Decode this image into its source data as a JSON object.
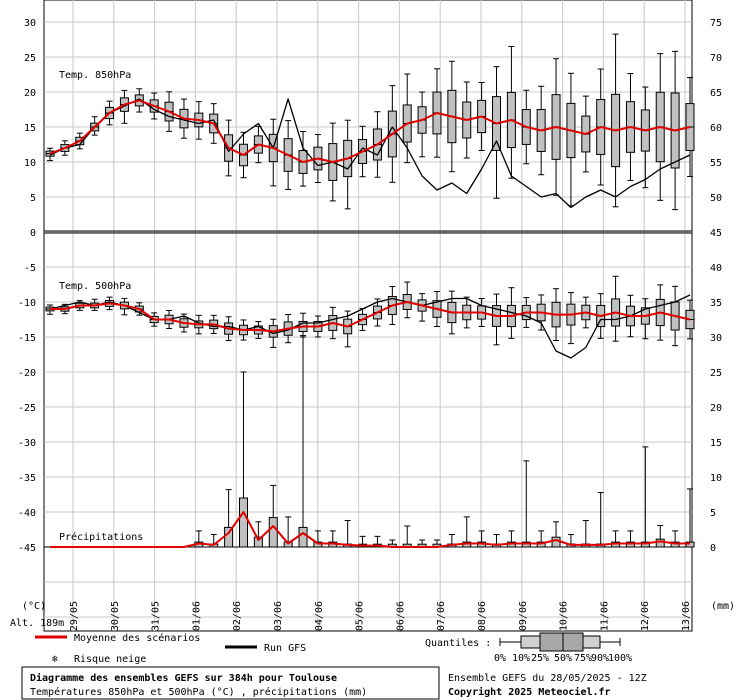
{
  "chart_data": {
    "type": "box",
    "dates": [
      "29/05",
      "30/05",
      "31/05",
      "01/06",
      "02/06",
      "03/06",
      "04/06",
      "05/06",
      "06/06",
      "07/06",
      "08/06",
      "09/06",
      "10/06",
      "11/06",
      "12/06",
      "13/06"
    ],
    "unit_left": "(°C)",
    "unit_right": "(mm)",
    "altitude": "Alt. 189m",
    "left_ticks": [
      "30",
      "25",
      "20",
      "15",
      "10",
      "5",
      "0",
      "-5",
      "-10",
      "-15",
      "-20",
      "-25",
      "-30",
      "-35",
      "-40",
      "-45"
    ],
    "right_ticks": [
      "75",
      "70",
      "65",
      "60",
      "55",
      "50",
      "45",
      "40",
      "35",
      "30",
      "25",
      "20",
      "15",
      "10",
      "5",
      "0"
    ],
    "panels": {
      "t850": {
        "label": "Temp. 850hPa",
        "ylim": [
          0,
          30
        ]
      },
      "t500": {
        "label": "Temp. 500hPa",
        "ylim": [
          -45,
          -5
        ]
      },
      "precip": {
        "label": "Précipitations",
        "ylim": [
          0,
          40
        ]
      }
    },
    "series": [
      {
        "name": "Moyenne des scénarios",
        "color": "#e00000"
      },
      {
        "name": "Run GFS",
        "color": "#000000"
      }
    ],
    "t850_mean": [
      11.2,
      12.0,
      13.0,
      15.0,
      17.0,
      18.2,
      18.8,
      18.0,
      17.2,
      16.2,
      16.0,
      15.5,
      12.0,
      11.0,
      12.5,
      12.0,
      11.0,
      10.0,
      10.5,
      10.0,
      10.5,
      11.5,
      12.5,
      14.0,
      15.5,
      16.0,
      17.0,
      16.5,
      16.0,
      16.5,
      15.5,
      16.0,
      15.0,
      14.5,
      15.0,
      14.5,
      14.0,
      15.0,
      14.5,
      15.0,
      14.5,
      15.0,
      14.5,
      15.0
    ],
    "t850_gfs": [
      11.0,
      12.0,
      12.5,
      15.0,
      17.0,
      18.0,
      19.0,
      17.5,
      16.5,
      16.0,
      15.5,
      16.0,
      11.5,
      14.0,
      15.5,
      12.0,
      19.0,
      12.0,
      9.5,
      10.0,
      9.0,
      12.0,
      11.0,
      15.0,
      12.0,
      8.0,
      6.0,
      7.0,
      5.5,
      9.0,
      13.0,
      8.0,
      6.5,
      5.0,
      5.5,
      3.5,
      5.0,
      6.0,
      5.0,
      6.5,
      7.5,
      9.0,
      10.0,
      11.0
    ],
    "t500_mean": [
      -11.0,
      -11.0,
      -10.5,
      -10.5,
      -10.2,
      -10.5,
      -11.0,
      -12.5,
      -12.5,
      -13.0,
      -13.2,
      -13.2,
      -13.8,
      -14.0,
      -14.0,
      -14.2,
      -13.8,
      -13.5,
      -13.5,
      -13.0,
      -13.5,
      -12.5,
      -11.5,
      -10.5,
      -10.0,
      -10.5,
      -11.0,
      -11.5,
      -11.5,
      -11.5,
      -12.0,
      -12.0,
      -11.5,
      -11.5,
      -11.8,
      -11.8,
      -11.5,
      -12.0,
      -11.5,
      -12.0,
      -12.0,
      -11.5,
      -12.0,
      -12.5
    ],
    "t500_gfs": [
      -11.0,
      -10.5,
      -10.0,
      -10.5,
      -10.0,
      -10.5,
      -11.5,
      -12.5,
      -12.5,
      -12.0,
      -13.0,
      -13.5,
      -13.5,
      -14.0,
      -13.5,
      -14.5,
      -14.0,
      -13.0,
      -13.0,
      -12.5,
      -12.0,
      -11.0,
      -10.0,
      -9.5,
      -10.0,
      -10.5,
      -10.0,
      -9.5,
      -9.5,
      -10.5,
      -11.0,
      -11.5,
      -12.0,
      -13.0,
      -17.0,
      -18.0,
      -16.5,
      -12.5,
      -12.5,
      -12.0,
      -11.0,
      -10.5,
      -10.0,
      -9.0
    ],
    "precip_mean": [
      0,
      0,
      0,
      0,
      0,
      0,
      0,
      0,
      0,
      0,
      0.5,
      0.3,
      2.0,
      5.0,
      1.0,
      3.0,
      0.5,
      2.0,
      0.5,
      0.5,
      0.3,
      0.2,
      0.2,
      0,
      0,
      0,
      0,
      0.3,
      0.5,
      0.5,
      0.3,
      0.5,
      0.5,
      0.5,
      1.0,
      0.3,
      0.3,
      0.3,
      0.5,
      0.5,
      0.5,
      0.8,
      0.5,
      0.5
    ],
    "quantile_legend": {
      "title": "Quantiles :",
      "labels": [
        "0%",
        "10%",
        "25%",
        "50%",
        "75%",
        "90%",
        "100%"
      ]
    },
    "snow_legend": "Risque neige",
    "title_main": "Diagramme des ensembles GEFS sur 384h pour Toulouse",
    "title_sub": "Températures 850hPa et 500hPa (°C) , précipitations (mm)",
    "run_label": "Ensemble GEFS du 28/05/2025 - 12Z",
    "copyright": "Copyright 2025 Meteociel.fr"
  }
}
